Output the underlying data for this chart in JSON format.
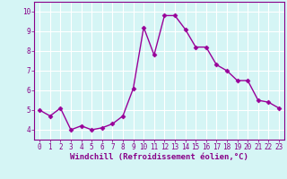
{
  "xlabel": "Windchill (Refroidissement éolien,°C)",
  "x": [
    0,
    1,
    2,
    3,
    4,
    5,
    6,
    7,
    8,
    9,
    10,
    11,
    12,
    13,
    14,
    15,
    16,
    17,
    18,
    19,
    20,
    21,
    22,
    23
  ],
  "y": [
    5.0,
    4.7,
    5.1,
    4.0,
    4.2,
    4.0,
    4.1,
    4.3,
    4.7,
    6.1,
    9.2,
    7.8,
    9.8,
    9.8,
    9.1,
    8.2,
    8.2,
    7.3,
    7.0,
    6.5,
    6.5,
    5.5,
    5.4,
    5.1
  ],
  "line_color": "#990099",
  "marker": "D",
  "marker_size": 2.5,
  "bg_color": "#d5f5f5",
  "grid_color": "#ffffff",
  "ylim": [
    3.5,
    10.5
  ],
  "xlim": [
    -0.5,
    23.5
  ],
  "yticks": [
    4,
    5,
    6,
    7,
    8,
    9,
    10
  ],
  "xticks": [
    0,
    1,
    2,
    3,
    4,
    5,
    6,
    7,
    8,
    9,
    10,
    11,
    12,
    13,
    14,
    15,
    16,
    17,
    18,
    19,
    20,
    21,
    22,
    23
  ],
  "tick_fontsize": 5.5,
  "xlabel_fontsize": 6.5,
  "label_color": "#880088",
  "axis_color": "#880088",
  "linewidth": 1.0
}
